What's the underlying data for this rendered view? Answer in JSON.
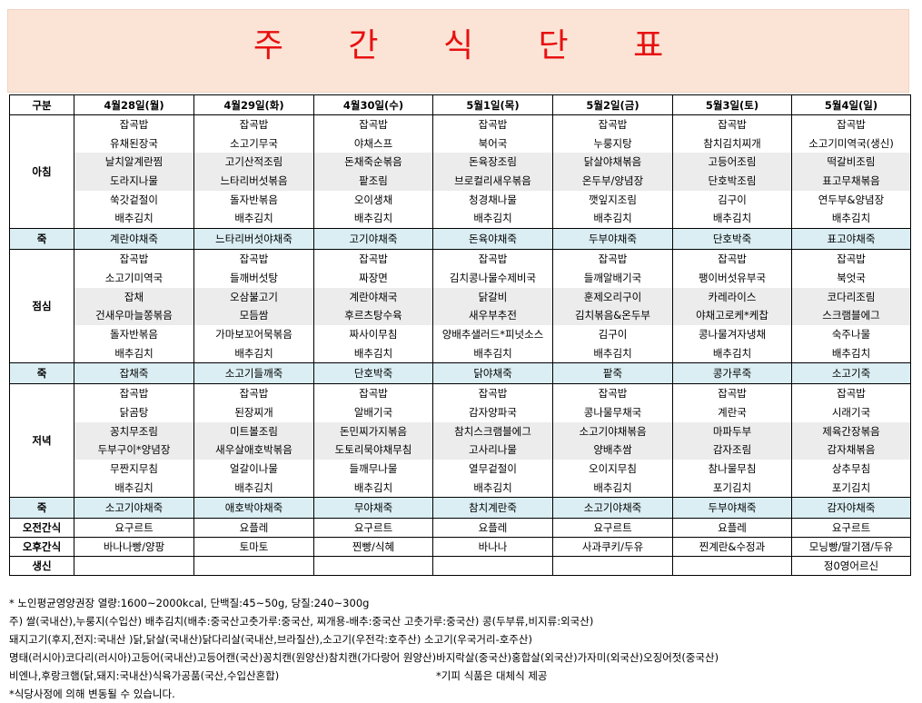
{
  "title": "주 간 식 단 표",
  "columns": [
    "구분",
    "4월28일(월)",
    "4월29일(화)",
    "4월30일(수)",
    "5월1일(목)",
    "5월2일(금)",
    "5월3일(토)",
    "5월4일(일)"
  ],
  "breakfast": {
    "label": "아침",
    "days": [
      [
        "잡곡밥",
        "유채된장국",
        "날치알계란찜",
        "도라지나물",
        "쑥갓겉절이",
        "배추김치"
      ],
      [
        "잡곡밥",
        "소고기무국",
        "고기산적조림",
        "느타리버섯볶음",
        "돌자반볶음",
        "배추김치"
      ],
      [
        "잡곡밥",
        "야채스프",
        "돈채죽순볶음",
        "팥조림",
        "오이생채",
        "배추김치"
      ],
      [
        "잡곡밥",
        "북어국",
        "돈육장조림",
        "브로컬리새우볶음",
        "청경채나물",
        "배추김치"
      ],
      [
        "잡곡밥",
        "누룽지탕",
        "닭살야채볶음",
        "온두부/양념장",
        "깻잎지조림",
        "배추김치"
      ],
      [
        "잡곡밥",
        "참치김치찌개",
        "고등어조림",
        "단호박조림",
        "김구이",
        "배추김치"
      ],
      [
        "잡곡밥",
        "소고기미역국(생신)",
        "떡갈비조림",
        "표고무채볶음",
        "연두부&양념장",
        "배추김치"
      ]
    ]
  },
  "juk1": {
    "label": "죽",
    "items": [
      "계란야채죽",
      "느타리버섯야채죽",
      "고기야채죽",
      "돈육야채죽",
      "두부야채죽",
      "단호박죽",
      "표고야채죽"
    ]
  },
  "lunch": {
    "label": "점심",
    "days": [
      [
        "잡곡밥",
        "소고기미역국",
        "잡채",
        "건새우마늘쫑볶음",
        "돌자반볶음",
        "배추김치"
      ],
      [
        "잡곡밥",
        "들깨버섯탕",
        "오삼불고기",
        "모듬쌈",
        "가마보꼬어묵볶음",
        "배추김치"
      ],
      [
        "잡곡밥",
        "짜장면",
        "계란야채국",
        "후르츠탕수육",
        "짜사이무침",
        "배추김치"
      ],
      [
        "잡곡밥",
        "김치콩나물수제비국",
        "닭갈비",
        "새우부추전",
        "양배추샐러드*피넛소스",
        "배추김치"
      ],
      [
        "잡곡밥",
        "들깨알배기국",
        "훈제오리구이",
        "김치볶음&온두부",
        "김구이",
        "배추김치"
      ],
      [
        "잡곡밥",
        "팽이버섯유부국",
        "카레라이스",
        "야채고로케*케찹",
        "콩나물겨자냉채",
        "배추김치"
      ],
      [
        "잡곡밥",
        "북엇국",
        "코다리조림",
        "스크램블에그",
        "숙주나물",
        "배추김치"
      ]
    ]
  },
  "juk2": {
    "label": "죽",
    "items": [
      "잡채죽",
      "소고기들깨죽",
      "단호박죽",
      "닭야채죽",
      "팥죽",
      "콩가루죽",
      "소고기죽"
    ]
  },
  "dinner": {
    "label": "저녁",
    "days": [
      [
        "잡곡밥",
        "닭곰탕",
        "꽁치무조림",
        "두부구이*양념장",
        "무짠지무침",
        "배추김치"
      ],
      [
        "잡곡밥",
        "된장찌개",
        "미트볼조림",
        "새우살애호박볶음",
        "얼갈이나물",
        "배추김치"
      ],
      [
        "잡곡밥",
        "알배기국",
        "돈민찌가지볶음",
        "도토리묵야채무침",
        "들깨무나물",
        "배추김치"
      ],
      [
        "잡곡밥",
        "감자양파국",
        "참치스크램블에그",
        "고사리나물",
        "열무겉절이",
        "배추김치"
      ],
      [
        "잡곡밥",
        "콩나물무채국",
        "소고기야채볶음",
        "양배추쌈",
        "오이지무침",
        "배추김치"
      ],
      [
        "잡곡밥",
        "계란국",
        "마파두부",
        "감자조림",
        "참나물무침",
        "포기김치"
      ],
      [
        "잡곡밥",
        "시래기국",
        "제육간장볶음",
        "감자채볶음",
        "상추무침",
        "포기김치"
      ]
    ]
  },
  "juk3": {
    "label": "죽",
    "items": [
      "소고기야채죽",
      "애호박야채죽",
      "무야채죽",
      "참치계란죽",
      "소고기야채죽",
      "두부야채죽",
      "감자야채죽"
    ]
  },
  "morning_snack": {
    "label": "오전간식",
    "items": [
      "요구르트",
      "요플레",
      "요구르트",
      "요플레",
      "요구르트",
      "요플레",
      "요구르트"
    ]
  },
  "afternoon_snack": {
    "label": "오후간식",
    "items": [
      "바나나빵/양팡",
      "토마토",
      "찐빵/식혜",
      "바나나",
      "사과쿠키/두유",
      "찐계란&수정과",
      "모닝빵/딸기잼/두유"
    ]
  },
  "birthday": {
    "label": "생신",
    "items": [
      "",
      "",
      "",
      "",
      "",
      "",
      "정0영어르신"
    ]
  },
  "notes": {
    "line1": "* 노인평균영양권장 열량:1600~2000kcal, 단백질:45~50g, 당질:240~300g",
    "line2": "주) 쌀(국내산),누룽지(수입산) 배추김치(배추:중국산고춧가루:중국산, 찌개용-배추:중국산 고춧가루:중국산) 콩(두부류,비지류:외국산)",
    "line3": "돼지고기(후지,전지:국내산 )닭,닭살(국내산)닭다리살(국내산,브라질산),소고기(우전각:호주산) 소고기(우국거리-호주산)",
    "line4": "명태(러시아)코다리(러시아)고등어(국내산)고등어캔(국산)꽁치캔(원양산)참치캔(가다랑어 원양산)바지락살(중국산)홍합살(외국산)가자미(외국산)오징어젓(중국산)",
    "line5": "비엔나,후랑크햄(닭,돼지:국내산)식육가공품(국산,수입산혼합)",
    "line5_sub": "*기피 식품은 대체식 제공",
    "line6": "*식당사정에 의해 변동될 수 있습니다."
  }
}
